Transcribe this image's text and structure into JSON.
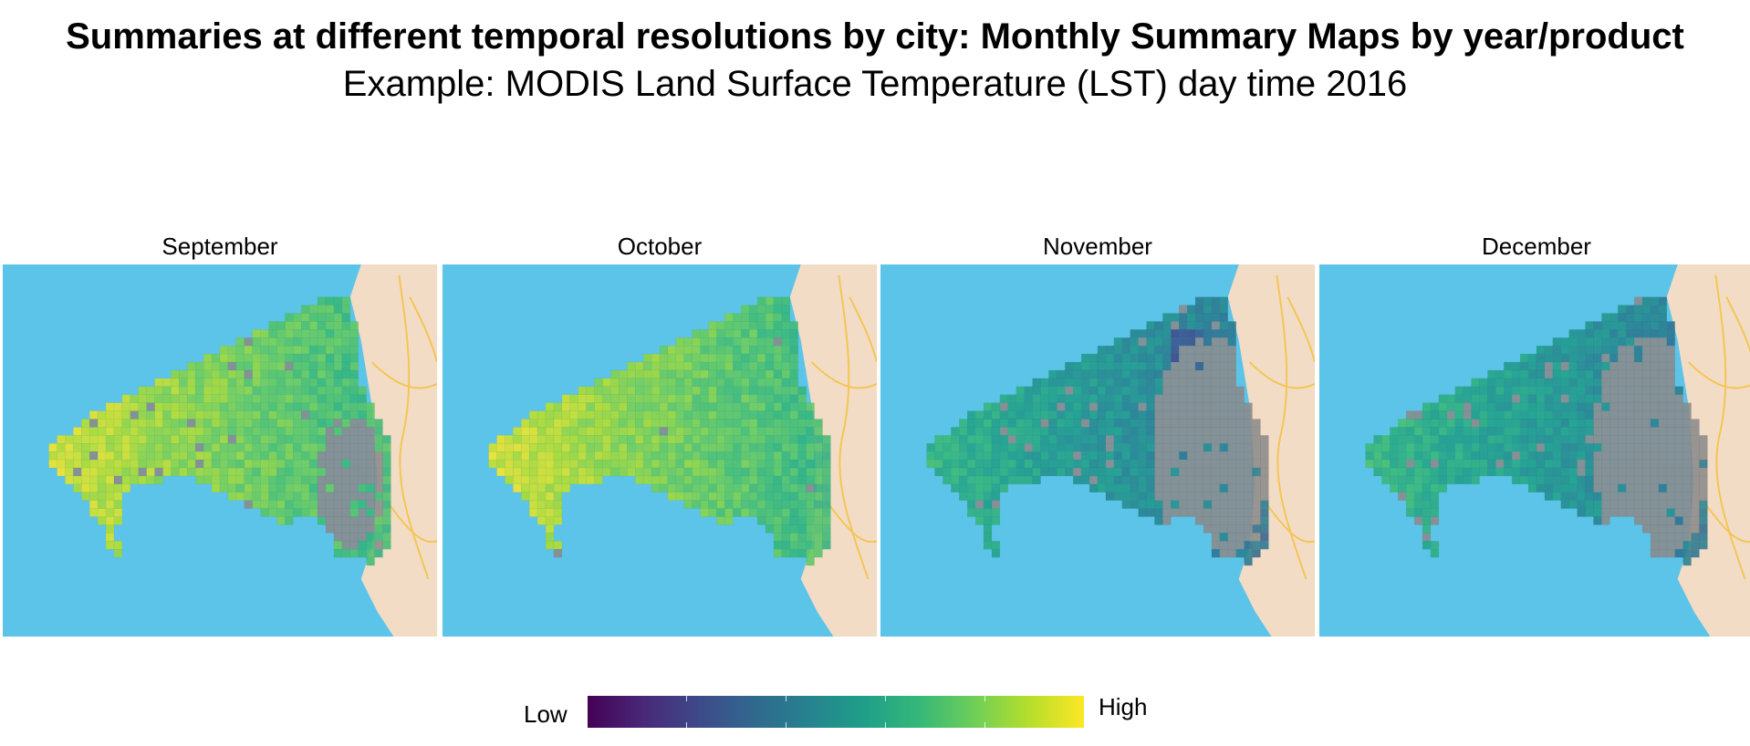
{
  "title": "Summaries at different temporal resolutions by city: Monthly Summary Maps by year/product",
  "subtitle": "Example: MODIS Land Surface Temperature (LST) day time 2016",
  "panels": [
    {
      "label": "September",
      "nodata": 0.12,
      "mean_level": 0.9
    },
    {
      "label": "October",
      "nodata": 0.03,
      "mean_level": 0.9
    },
    {
      "label": "November",
      "nodata": 0.3,
      "mean_level": 0.6
    },
    {
      "label": "December",
      "nodata": 0.25,
      "mean_level": 0.62
    }
  ],
  "legend": {
    "low_label": "Low",
    "high_label": "High",
    "colors": [
      "#440154",
      "#482878",
      "#3e4989",
      "#31688e",
      "#26828e",
      "#1f9e89",
      "#35b779",
      "#6ece58",
      "#b5de2b",
      "#fde725"
    ]
  },
  "colors": {
    "water": "#5cc4e8",
    "land": "#f2dcc6",
    "nodata": "#8a8a8a",
    "roads": "#f3c550"
  }
}
